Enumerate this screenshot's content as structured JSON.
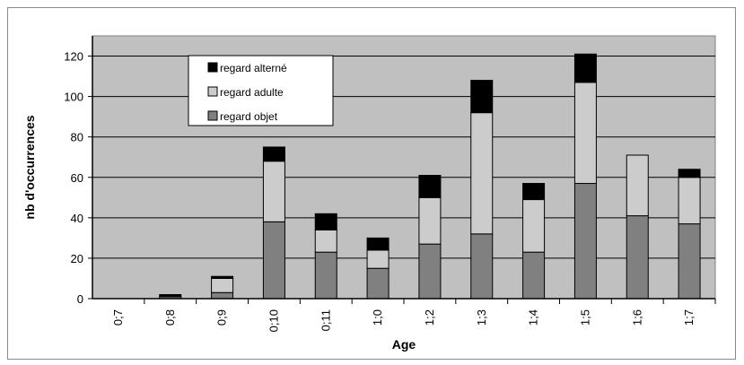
{
  "chart_data": {
    "type": "bar",
    "stacked": true,
    "categories": [
      "0;7",
      "0;8",
      "0;9",
      "0;10",
      "0;11",
      "1;0",
      "1;2",
      "1;3",
      "1;4",
      "1;5",
      "1;6",
      "1;7"
    ],
    "series": [
      {
        "name": "regard objet",
        "color": "#808080",
        "values": [
          0,
          1,
          3,
          38,
          23,
          15,
          27,
          32,
          23,
          57,
          41,
          37
        ]
      },
      {
        "name": "regard adulte",
        "color": "#cccccc",
        "values": [
          0,
          0,
          7,
          30,
          11,
          9,
          23,
          60,
          26,
          50,
          30,
          23
        ]
      },
      {
        "name": "regard alterné",
        "color": "#000000",
        "values": [
          0,
          1,
          1,
          7,
          8,
          6,
          11,
          16,
          8,
          14,
          0,
          4
        ]
      }
    ],
    "xlabel": "Age",
    "ylabel": "nb d'occurrences",
    "ylim": [
      0,
      130
    ],
    "yticks": [
      0,
      20,
      40,
      60,
      80,
      100,
      120
    ],
    "grid": true,
    "plot_background": "#c0c0c0",
    "legend_order": [
      "regard alterné",
      "regard adulte",
      "regard objet"
    ]
  }
}
